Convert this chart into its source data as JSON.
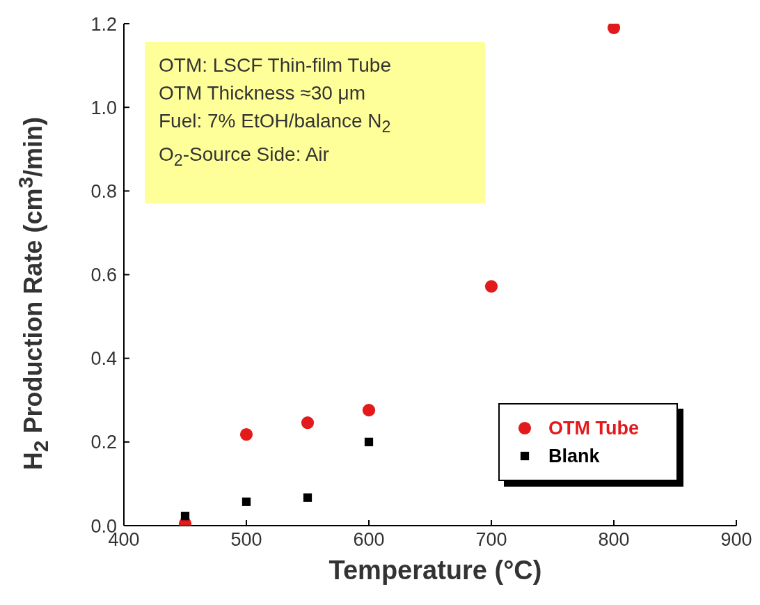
{
  "chart_data": {
    "type": "scatter",
    "xlabel": "Temperature (°C)",
    "ylabel": "H$_{2}$ Production Rate (cm$^{3}$/min)",
    "xlim": [
      400,
      900
    ],
    "xticks": [
      400,
      500,
      600,
      700,
      800,
      900
    ],
    "ylim": [
      0,
      1.2
    ],
    "yticks": [
      {
        "value": 0,
        "label": "0.0"
      },
      {
        "value": 0.2,
        "label": "0.2"
      },
      {
        "value": 0.4,
        "label": "0.4"
      },
      {
        "value": 0.6,
        "label": "0.6"
      },
      {
        "value": 0.8,
        "label": "0.8"
      },
      {
        "value": 1.0,
        "label": "1.0"
      },
      {
        "value": 1.2,
        "label": "1.2"
      }
    ],
    "grid": false,
    "legend": "bottom right",
    "annotations": [
      "OTM: LSCF Thin-film Tube",
      "OTM Thickness ≈30 μm",
      "Fuel: 7% EtOH/balance N$_{2}$",
      "O$_{2}$-Source Side: Air"
    ],
    "series": [
      {
        "name": "OTM Tube",
        "color": "#e31a1c",
        "marker": "circle",
        "x": [
          450,
          500,
          550,
          600,
          700,
          800
        ],
        "values": [
          0.005,
          0.218,
          0.246,
          0.276,
          0.572,
          1.19
        ]
      },
      {
        "name": "Blank",
        "color": "#000000",
        "marker": "square",
        "x": [
          450,
          500,
          550,
          600
        ],
        "values": [
          0.023,
          0.057,
          0.067,
          0.2
        ]
      }
    ]
  }
}
